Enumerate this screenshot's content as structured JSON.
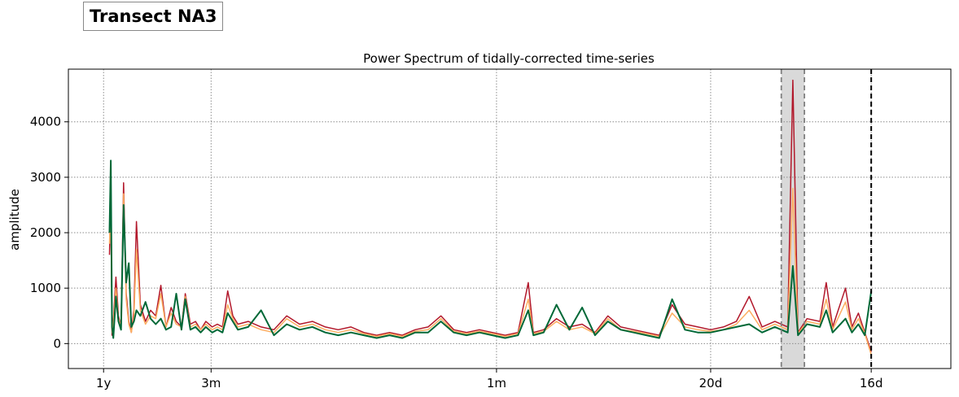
{
  "header": {
    "box_title": "Transect NA3"
  },
  "chart_data": {
    "type": "line",
    "title": "Power Spectrum of tidally-corrected time-series",
    "xlabel": "",
    "ylabel": "amplitude",
    "x_unit": "cycles/day",
    "xlim": [
      0.0,
      0.0687
    ],
    "ylim": [
      -450,
      4950
    ],
    "grid": true,
    "legend": "none",
    "x_ticks": [
      {
        "value": 0.00274,
        "label": "1y"
      },
      {
        "value": 0.01111,
        "label": "3m"
      },
      {
        "value": 0.03333,
        "label": "1m"
      },
      {
        "value": 0.05,
        "label": "20d"
      },
      {
        "value": 0.0625,
        "label": "16d"
      }
    ],
    "y_ticks": [
      0,
      1000,
      2000,
      3000,
      4000
    ],
    "shaded_band": {
      "x_start": 0.0555,
      "x_end": 0.0573,
      "color": "#d9d9d9"
    },
    "vertical_lines": [
      {
        "x": 0.0555,
        "style": "dashed",
        "color": "#808080"
      },
      {
        "x": 0.0573,
        "style": "dashed",
        "color": "#808080"
      },
      {
        "x": 0.0625,
        "style": "dashed",
        "color": "#000000"
      }
    ],
    "series": [
      {
        "color": "#b2182b",
        "points": [
          [
            0.0032,
            1600
          ],
          [
            0.0033,
            2800
          ],
          [
            0.0034,
            150
          ],
          [
            0.0035,
            400
          ],
          [
            0.0037,
            1200
          ],
          [
            0.0039,
            500
          ],
          [
            0.0041,
            300
          ],
          [
            0.0043,
            2900
          ],
          [
            0.0045,
            900
          ],
          [
            0.0047,
            400
          ],
          [
            0.0049,
            200
          ],
          [
            0.0051,
            600
          ],
          [
            0.0053,
            2200
          ],
          [
            0.0056,
            700
          ],
          [
            0.006,
            400
          ],
          [
            0.0064,
            600
          ],
          [
            0.0068,
            500
          ],
          [
            0.0072,
            1050
          ],
          [
            0.0076,
            300
          ],
          [
            0.008,
            650
          ],
          [
            0.0084,
            400
          ],
          [
            0.0088,
            300
          ],
          [
            0.0091,
            900
          ],
          [
            0.0095,
            350
          ],
          [
            0.0099,
            400
          ],
          [
            0.0103,
            250
          ],
          [
            0.0107,
            400
          ],
          [
            0.0112,
            300
          ],
          [
            0.0116,
            350
          ],
          [
            0.012,
            300
          ],
          [
            0.0124,
            950
          ],
          [
            0.0128,
            500
          ],
          [
            0.0132,
            350
          ],
          [
            0.014,
            400
          ],
          [
            0.015,
            300
          ],
          [
            0.016,
            250
          ],
          [
            0.017,
            500
          ],
          [
            0.018,
            350
          ],
          [
            0.019,
            400
          ],
          [
            0.02,
            300
          ],
          [
            0.021,
            250
          ],
          [
            0.022,
            300
          ],
          [
            0.023,
            200
          ],
          [
            0.024,
            150
          ],
          [
            0.025,
            200
          ],
          [
            0.026,
            150
          ],
          [
            0.027,
            250
          ],
          [
            0.028,
            300
          ],
          [
            0.029,
            500
          ],
          [
            0.03,
            250
          ],
          [
            0.031,
            200
          ],
          [
            0.032,
            250
          ],
          [
            0.033,
            200
          ],
          [
            0.034,
            150
          ],
          [
            0.035,
            200
          ],
          [
            0.0358,
            1100
          ],
          [
            0.0362,
            200
          ],
          [
            0.037,
            250
          ],
          [
            0.038,
            450
          ],
          [
            0.039,
            300
          ],
          [
            0.04,
            350
          ],
          [
            0.041,
            200
          ],
          [
            0.042,
            500
          ],
          [
            0.043,
            300
          ],
          [
            0.044,
            250
          ],
          [
            0.045,
            200
          ],
          [
            0.046,
            150
          ],
          [
            0.047,
            700
          ],
          [
            0.048,
            350
          ],
          [
            0.049,
            300
          ],
          [
            0.05,
            250
          ],
          [
            0.051,
            300
          ],
          [
            0.052,
            400
          ],
          [
            0.053,
            850
          ],
          [
            0.054,
            300
          ],
          [
            0.055,
            400
          ],
          [
            0.056,
            300
          ],
          [
            0.0564,
            4750
          ],
          [
            0.0568,
            200
          ],
          [
            0.0575,
            450
          ],
          [
            0.0585,
            400
          ],
          [
            0.059,
            1100
          ],
          [
            0.0595,
            300
          ],
          [
            0.0605,
            1000
          ],
          [
            0.061,
            300
          ],
          [
            0.0615,
            550
          ],
          [
            0.062,
            200
          ],
          [
            0.0625,
            -150
          ]
        ]
      },
      {
        "color": "#fdae61",
        "points": [
          [
            0.0032,
            1800
          ],
          [
            0.0033,
            2600
          ],
          [
            0.0034,
            200
          ],
          [
            0.0035,
            350
          ],
          [
            0.0037,
            1000
          ],
          [
            0.0039,
            450
          ],
          [
            0.0041,
            300
          ],
          [
            0.0043,
            2700
          ],
          [
            0.0045,
            800
          ],
          [
            0.0047,
            350
          ],
          [
            0.0049,
            200
          ],
          [
            0.0051,
            500
          ],
          [
            0.0053,
            1700
          ],
          [
            0.0056,
            600
          ],
          [
            0.006,
            350
          ],
          [
            0.0064,
            500
          ],
          [
            0.0068,
            450
          ],
          [
            0.0072,
            900
          ],
          [
            0.0076,
            300
          ],
          [
            0.008,
            550
          ],
          [
            0.0084,
            350
          ],
          [
            0.0088,
            300
          ],
          [
            0.0091,
            850
          ],
          [
            0.0095,
            300
          ],
          [
            0.0099,
            350
          ],
          [
            0.0103,
            250
          ],
          [
            0.0107,
            350
          ],
          [
            0.0112,
            250
          ],
          [
            0.0116,
            300
          ],
          [
            0.012,
            250
          ],
          [
            0.0124,
            700
          ],
          [
            0.0128,
            450
          ],
          [
            0.0132,
            300
          ],
          [
            0.014,
            350
          ],
          [
            0.015,
            250
          ],
          [
            0.016,
            200
          ],
          [
            0.017,
            450
          ],
          [
            0.018,
            300
          ],
          [
            0.019,
            350
          ],
          [
            0.02,
            250
          ],
          [
            0.021,
            200
          ],
          [
            0.022,
            250
          ],
          [
            0.023,
            180
          ],
          [
            0.024,
            130
          ],
          [
            0.025,
            180
          ],
          [
            0.026,
            130
          ],
          [
            0.027,
            220
          ],
          [
            0.028,
            250
          ],
          [
            0.029,
            450
          ],
          [
            0.03,
            220
          ],
          [
            0.031,
            180
          ],
          [
            0.032,
            220
          ],
          [
            0.033,
            180
          ],
          [
            0.034,
            130
          ],
          [
            0.035,
            180
          ],
          [
            0.0358,
            800
          ],
          [
            0.0362,
            180
          ],
          [
            0.037,
            220
          ],
          [
            0.038,
            400
          ],
          [
            0.039,
            250
          ],
          [
            0.04,
            300
          ],
          [
            0.041,
            180
          ],
          [
            0.042,
            450
          ],
          [
            0.043,
            250
          ],
          [
            0.044,
            220
          ],
          [
            0.045,
            180
          ],
          [
            0.046,
            130
          ],
          [
            0.047,
            550
          ],
          [
            0.048,
            300
          ],
          [
            0.049,
            250
          ],
          [
            0.05,
            220
          ],
          [
            0.051,
            250
          ],
          [
            0.052,
            350
          ],
          [
            0.053,
            600
          ],
          [
            0.054,
            250
          ],
          [
            0.055,
            350
          ],
          [
            0.056,
            250
          ],
          [
            0.0564,
            2800
          ],
          [
            0.0568,
            180
          ],
          [
            0.0575,
            400
          ],
          [
            0.0585,
            350
          ],
          [
            0.059,
            800
          ],
          [
            0.0595,
            250
          ],
          [
            0.0605,
            750
          ],
          [
            0.061,
            250
          ],
          [
            0.0615,
            450
          ],
          [
            0.062,
            180
          ],
          [
            0.0625,
            -200
          ]
        ]
      },
      {
        "color": "#006837",
        "points": [
          [
            0.0032,
            2000
          ],
          [
            0.0033,
            3300
          ],
          [
            0.0034,
            300
          ],
          [
            0.0035,
            100
          ],
          [
            0.0037,
            850
          ],
          [
            0.0039,
            400
          ],
          [
            0.0041,
            250
          ],
          [
            0.0043,
            2500
          ],
          [
            0.0045,
            1100
          ],
          [
            0.0047,
            1450
          ],
          [
            0.0049,
            300
          ],
          [
            0.0051,
            400
          ],
          [
            0.0053,
            600
          ],
          [
            0.0056,
            500
          ],
          [
            0.006,
            750
          ],
          [
            0.0064,
            450
          ],
          [
            0.0068,
            350
          ],
          [
            0.0072,
            450
          ],
          [
            0.0076,
            250
          ],
          [
            0.008,
            300
          ],
          [
            0.0084,
            900
          ],
          [
            0.0088,
            250
          ],
          [
            0.0091,
            800
          ],
          [
            0.0095,
            250
          ],
          [
            0.0099,
            300
          ],
          [
            0.0103,
            200
          ],
          [
            0.0107,
            300
          ],
          [
            0.0112,
            200
          ],
          [
            0.0116,
            250
          ],
          [
            0.012,
            200
          ],
          [
            0.0124,
            550
          ],
          [
            0.0128,
            400
          ],
          [
            0.0132,
            250
          ],
          [
            0.014,
            300
          ],
          [
            0.015,
            600
          ],
          [
            0.016,
            150
          ],
          [
            0.017,
            350
          ],
          [
            0.018,
            250
          ],
          [
            0.019,
            300
          ],
          [
            0.02,
            200
          ],
          [
            0.021,
            150
          ],
          [
            0.022,
            200
          ],
          [
            0.023,
            150
          ],
          [
            0.024,
            100
          ],
          [
            0.025,
            150
          ],
          [
            0.026,
            100
          ],
          [
            0.027,
            200
          ],
          [
            0.028,
            200
          ],
          [
            0.029,
            400
          ],
          [
            0.03,
            200
          ],
          [
            0.031,
            150
          ],
          [
            0.032,
            200
          ],
          [
            0.033,
            150
          ],
          [
            0.034,
            100
          ],
          [
            0.035,
            150
          ],
          [
            0.0358,
            600
          ],
          [
            0.0362,
            150
          ],
          [
            0.037,
            200
          ],
          [
            0.038,
            700
          ],
          [
            0.039,
            250
          ],
          [
            0.04,
            650
          ],
          [
            0.041,
            150
          ],
          [
            0.042,
            400
          ],
          [
            0.043,
            250
          ],
          [
            0.044,
            200
          ],
          [
            0.045,
            150
          ],
          [
            0.046,
            100
          ],
          [
            0.047,
            800
          ],
          [
            0.048,
            250
          ],
          [
            0.049,
            200
          ],
          [
            0.05,
            200
          ],
          [
            0.051,
            250
          ],
          [
            0.052,
            300
          ],
          [
            0.053,
            350
          ],
          [
            0.054,
            200
          ],
          [
            0.055,
            300
          ],
          [
            0.056,
            200
          ],
          [
            0.0564,
            1400
          ],
          [
            0.0568,
            150
          ],
          [
            0.0575,
            350
          ],
          [
            0.0585,
            300
          ],
          [
            0.059,
            600
          ],
          [
            0.0595,
            200
          ],
          [
            0.0605,
            450
          ],
          [
            0.061,
            200
          ],
          [
            0.0615,
            350
          ],
          [
            0.062,
            150
          ],
          [
            0.0625,
            950
          ]
        ]
      }
    ]
  }
}
